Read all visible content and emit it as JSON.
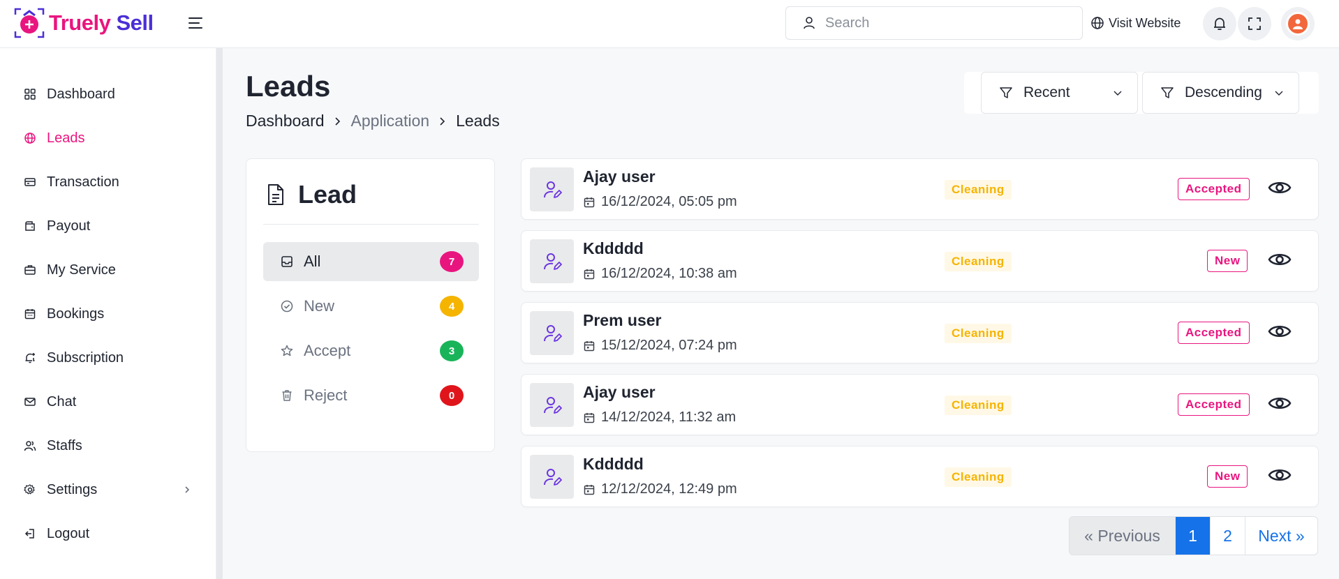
{
  "app": {
    "logo_text_1": "Truely",
    "logo_text_2": "Sell"
  },
  "header": {
    "search_placeholder": "Search",
    "visit_website": "Visit Website"
  },
  "sidebar": {
    "items": [
      {
        "label": "Dashboard",
        "icon": "grid-icon"
      },
      {
        "label": "Leads",
        "icon": "globe-icon"
      },
      {
        "label": "Transaction",
        "icon": "card-icon"
      },
      {
        "label": "Payout",
        "icon": "wallet-icon"
      },
      {
        "label": "My Service",
        "icon": "briefcase-icon"
      },
      {
        "label": "Bookings",
        "icon": "calendar-icon"
      },
      {
        "label": "Subscription",
        "icon": "bell-plus-icon"
      },
      {
        "label": "Chat",
        "icon": "mail-icon"
      },
      {
        "label": "Staffs",
        "icon": "users-icon"
      },
      {
        "label": "Settings",
        "icon": "gear-icon"
      },
      {
        "label": "Logout",
        "icon": "logout-icon"
      }
    ],
    "active": "Leads"
  },
  "page": {
    "title": "Leads",
    "breadcrumb": [
      "Dashboard",
      "Application",
      "Leads"
    ]
  },
  "filters": {
    "sort": "Recent",
    "order": "Descending"
  },
  "lead_panel": {
    "title": "Lead",
    "categories": [
      {
        "label": "All",
        "count": "7",
        "color": "#e9157f"
      },
      {
        "label": "New",
        "count": "4",
        "color": "#f5b400"
      },
      {
        "label": "Accept",
        "count": "3",
        "color": "#19b45a"
      },
      {
        "label": "Reject",
        "count": "0",
        "color": "#e0151b"
      }
    ]
  },
  "leads": [
    {
      "name": "Ajay user",
      "date": "16/12/2024, 05:05 pm",
      "service": "Cleaning",
      "status": "Accepted"
    },
    {
      "name": "Kddddd",
      "date": "16/12/2024, 10:38 am",
      "service": "Cleaning",
      "status": "New"
    },
    {
      "name": "Prem user",
      "date": "15/12/2024, 07:24 pm",
      "service": "Cleaning",
      "status": "Accepted"
    },
    {
      "name": "Ajay user",
      "date": "14/12/2024, 11:32 am",
      "service": "Cleaning",
      "status": "Accepted"
    },
    {
      "name": "Kddddd",
      "date": "12/12/2024, 12:49 pm",
      "service": "Cleaning",
      "status": "New"
    }
  ],
  "pagination": {
    "prev": "« Previous",
    "pages": [
      "1",
      "2"
    ],
    "current": "1",
    "next": "Next »"
  },
  "colors": {
    "accent": "#e9157f",
    "brand_purple": "#4b2fd6",
    "primary_blue": "#1572e8",
    "service_badge": "#f5b400"
  }
}
